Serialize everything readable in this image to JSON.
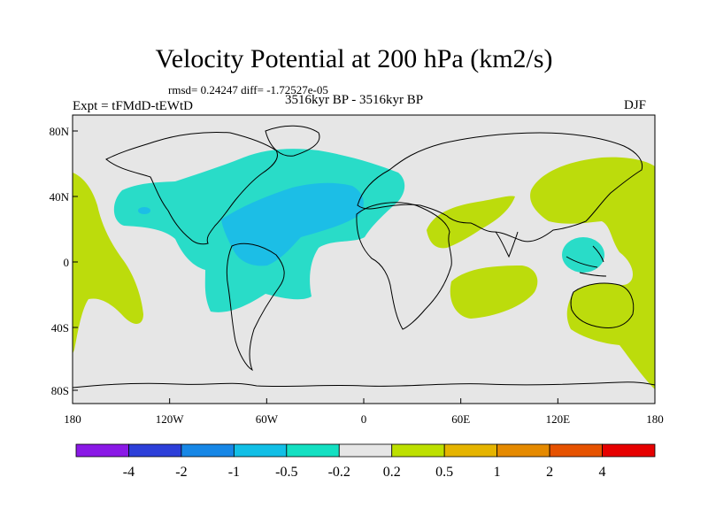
{
  "title": "Velocity Potential at 200 hPa (km2/s)",
  "stats": "rmsd= 0.24247 diff= -1.72527e-05",
  "experiment": "Expt = tFMdD-tEWtD",
  "period": "3516kyr BP - 3516kyr BP",
  "season": "DJF",
  "axes": {
    "lat_labels": [
      "80N",
      "40N",
      "0",
      "40S",
      "80S"
    ],
    "lon_labels": [
      "180",
      "120W",
      "60W",
      "0",
      "60E",
      "120E",
      "180"
    ]
  },
  "colorbar": {
    "labels": [
      "-4",
      "-2",
      "-1",
      "-0.5",
      "-0.2",
      "0.2",
      "0.5",
      "1",
      "2",
      "4"
    ],
    "colors": [
      "#8A19E6",
      "#2D3FD9",
      "#1787E6",
      "#12BFE6",
      "#14E0C2",
      "#E6E6E6",
      "#BDE000",
      "#E5B400",
      "#E58A00",
      "#E65200",
      "#E60000"
    ]
  },
  "colors": {
    "land_background": "#E6E6E6",
    "negative_light": "#29DCC8",
    "negative_medium": "#1CBEE6",
    "positive_light": "#BCDC0C",
    "coastline": "#000000"
  }
}
